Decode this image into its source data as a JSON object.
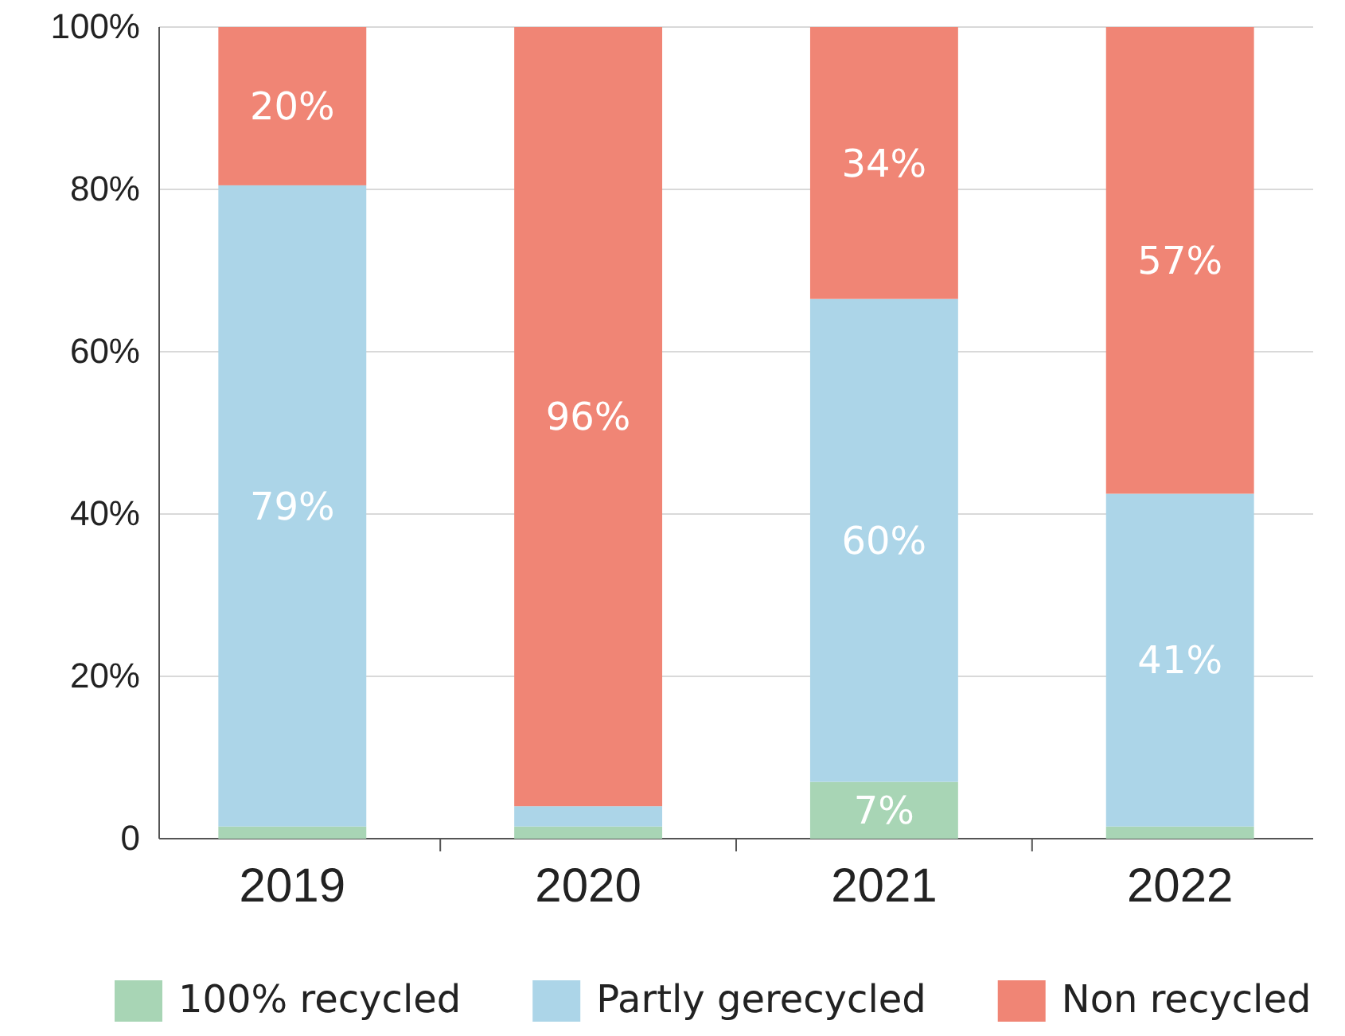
{
  "chart_data": {
    "type": "bar",
    "stacked": true,
    "categories": [
      "2019",
      "2020",
      "2021",
      "2022"
    ],
    "series": [
      {
        "name": "100% recycled",
        "color": "#a8d5b5",
        "values": [
          1.5,
          1.5,
          7,
          1.5
        ],
        "value_labels": [
          null,
          null,
          "7%",
          null
        ]
      },
      {
        "name": "Partly gerecycled",
        "color": "#acd5e8",
        "values": [
          79,
          2.5,
          59.5,
          41
        ],
        "value_labels": [
          "79%",
          null,
          "60%",
          "41%"
        ]
      },
      {
        "name": "Non recycled",
        "color": "#f08575",
        "values": [
          19.5,
          96,
          33.5,
          57.5
        ],
        "value_labels": [
          "20%",
          "96%",
          "34%",
          "57%"
        ]
      }
    ],
    "ylim": [
      0,
      100
    ],
    "yticks": [
      {
        "value": 0,
        "label": "0"
      },
      {
        "value": 20,
        "label": "20%"
      },
      {
        "value": 40,
        "label": "40%"
      },
      {
        "value": 60,
        "label": "60%"
      },
      {
        "value": 80,
        "label": "80%"
      },
      {
        "value": 100,
        "label": "100%"
      }
    ],
    "grid": "y",
    "legend": "bottom"
  }
}
